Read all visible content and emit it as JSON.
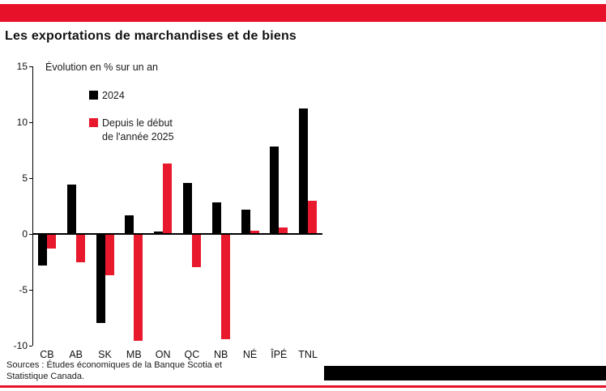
{
  "header": {
    "title": "Les exportations de marchandises et de biens"
  },
  "footer": {
    "sources_line1": "Sources : Études économiques de la Banque Scotia et",
    "sources_line2": "Statistique Canada."
  },
  "colors": {
    "accent_red": "#e8112a",
    "bar_black": "#000000",
    "bar_red": "#e8192c"
  },
  "chart_data": {
    "type": "bar",
    "title": "Les exportations de marchandises et de biens",
    "ylabel_annotation": "Évolution en % sur un an",
    "categories": [
      "CB",
      "AB",
      "SK",
      "MB",
      "ON",
      "QC",
      "NB",
      "NÉ",
      "ÎPÉ",
      "TNL"
    ],
    "series": [
      {
        "key": "2024",
        "name": "2024",
        "color": "#000000",
        "values": [
          -2.8,
          4.4,
          -8.0,
          1.7,
          0.2,
          4.6,
          2.8,
          2.2,
          7.8,
          11.2
        ]
      },
      {
        "key": "2025",
        "name": "Depuis le début de l'année 2025",
        "color": "#e8192c",
        "values": [
          -1.3,
          -2.5,
          -3.7,
          -9.6,
          6.3,
          -3.0,
          -9.4,
          0.3,
          0.6,
          3.0
        ]
      }
    ],
    "legend": {
      "item1_label": "2024",
      "item2_line1": "Depuis le début",
      "item2_line2": "de l'année 2025"
    },
    "ylim": [
      -10,
      15
    ],
    "yticks": [
      15,
      10,
      5,
      0,
      -5,
      -10
    ],
    "grid": false,
    "legend_position": "inside-top-left"
  }
}
